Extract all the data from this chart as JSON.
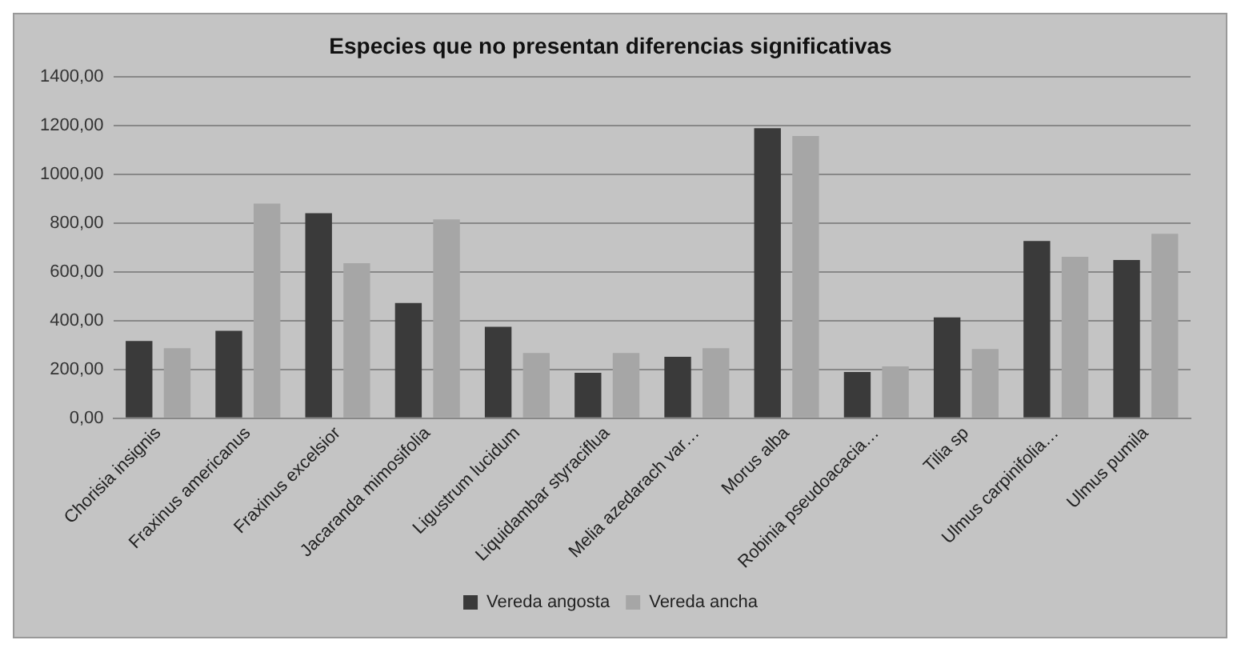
{
  "chart_data": {
    "type": "bar",
    "title": "Especies que no presentan diferencias significativas",
    "categories": [
      "Chorisia insignis",
      "Fraxinus americanus",
      "Fraxinus excelsior",
      "Jacaranda mimosifolia",
      "Ligustrum lucidum",
      "Liquidambar styraciflua",
      "Melia azedarach var…",
      "Morus alba",
      "Robinia pseudoacacia…",
      "Tilia sp",
      "Ulmus carpinifolia…",
      "Ulmus pumila"
    ],
    "series": [
      {
        "name": "Vereda angosta",
        "color": "#3a3a3a",
        "values": [
          316,
          358,
          840,
          472,
          374,
          186,
          251,
          1188,
          189,
          413,
          726,
          648
        ]
      },
      {
        "name": "Vereda ancha",
        "color": "#a6a6a6",
        "values": [
          287,
          879,
          635,
          814,
          267,
          267,
          287,
          1156,
          212,
          283,
          661,
          755
        ]
      }
    ],
    "ylim": [
      0,
      1400
    ],
    "yticks": [
      {
        "value": 0,
        "label": "0,00"
      },
      {
        "value": 200,
        "label": "200,00"
      },
      {
        "value": 400,
        "label": "400,00"
      },
      {
        "value": 600,
        "label": "600,00"
      },
      {
        "value": 800,
        "label": "800,00"
      },
      {
        "value": 1000,
        "label": "1000,00"
      },
      {
        "value": 1200,
        "label": "1200,00"
      },
      {
        "value": 1400,
        "label": "1400,00"
      }
    ],
    "grid": "y",
    "legend": "bottom"
  }
}
